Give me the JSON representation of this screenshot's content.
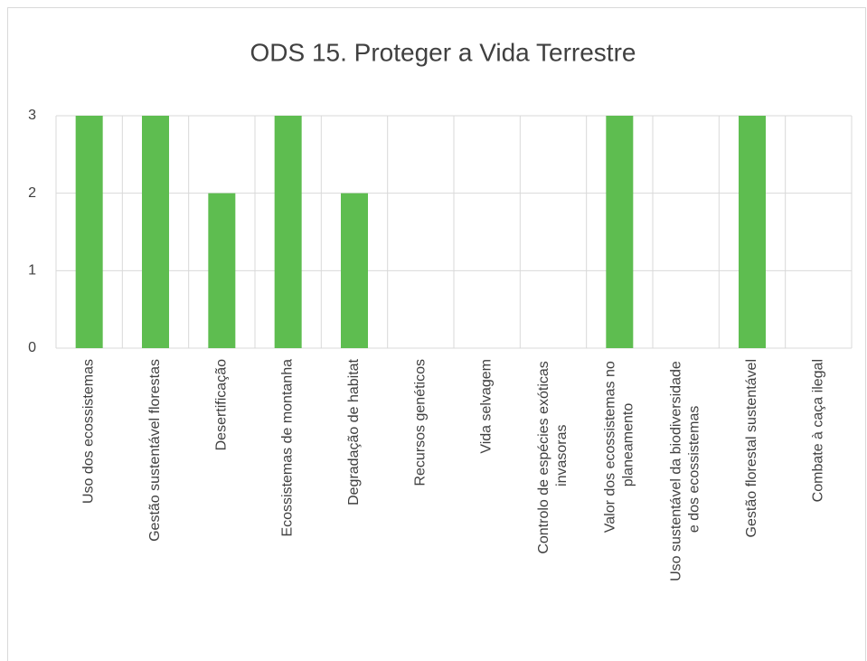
{
  "chart_data": {
    "type": "bar",
    "title": "ODS 15. Proteger a Vida Terrestre",
    "categories": [
      "Uso dos ecossistemas",
      "Gestão sustentável florestas",
      "Desertificação",
      "Ecossistemas de montanha",
      "Degradação de habitat",
      "Recursos genéticos",
      "Vida selvagem",
      "Controlo de espécies exóticas invasoras",
      "Valor dos ecossistemas no planeamento",
      "Uso sustentável da biodiversidade e dos ecossistemas",
      "Gestão florestal sustentável",
      "Combate à caça ilegal"
    ],
    "values": [
      3,
      3,
      2,
      3,
      2,
      0,
      0,
      0,
      3,
      0,
      3,
      0
    ],
    "color": "#5ebd50",
    "ylim": [
      0,
      3
    ],
    "yticks": [
      0,
      1,
      2,
      3
    ],
    "grid": true
  }
}
